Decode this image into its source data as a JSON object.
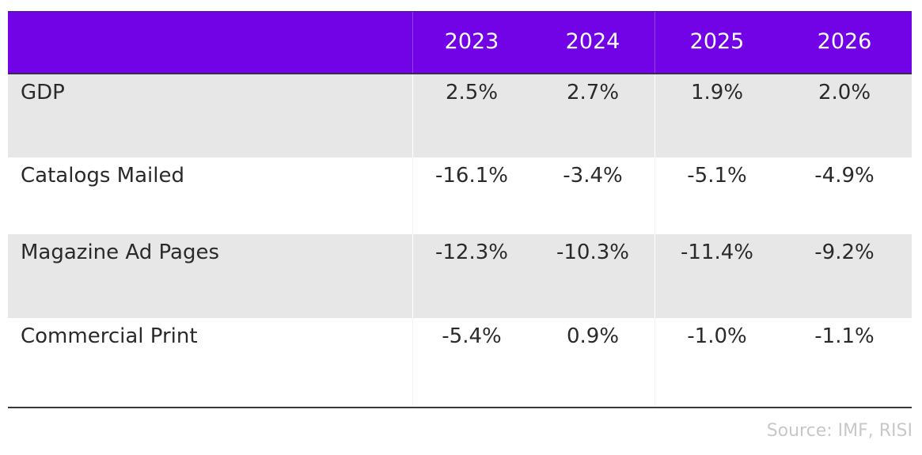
{
  "chart_data": {
    "type": "table",
    "columns": [
      "",
      "2023",
      "2024",
      "2025",
      "2026"
    ],
    "rows": [
      {
        "label": "GDP",
        "values": [
          "2.5%",
          "2.7%",
          "1.9%",
          "2.0%"
        ]
      },
      {
        "label": "Catalogs Mailed",
        "values": [
          "-16.1%",
          "-3.4%",
          "-5.1%",
          "-4.9%"
        ]
      },
      {
        "label": "Magazine Ad Pages",
        "values": [
          "-12.3%",
          "-10.3%",
          "-11.4%",
          "-9.2%"
        ]
      },
      {
        "label": "Commercial Print",
        "values": [
          "-5.4%",
          "0.9%",
          "-1.0%",
          "-1.1%"
        ]
      }
    ],
    "source": "Source: IMF, RISI"
  },
  "colors": {
    "header_background": "#7203e6",
    "header_text": "#ffffff",
    "stripe_background": "#e7e7e7",
    "body_text": "#2a2a2a",
    "source_text": "#c8c8c8"
  }
}
